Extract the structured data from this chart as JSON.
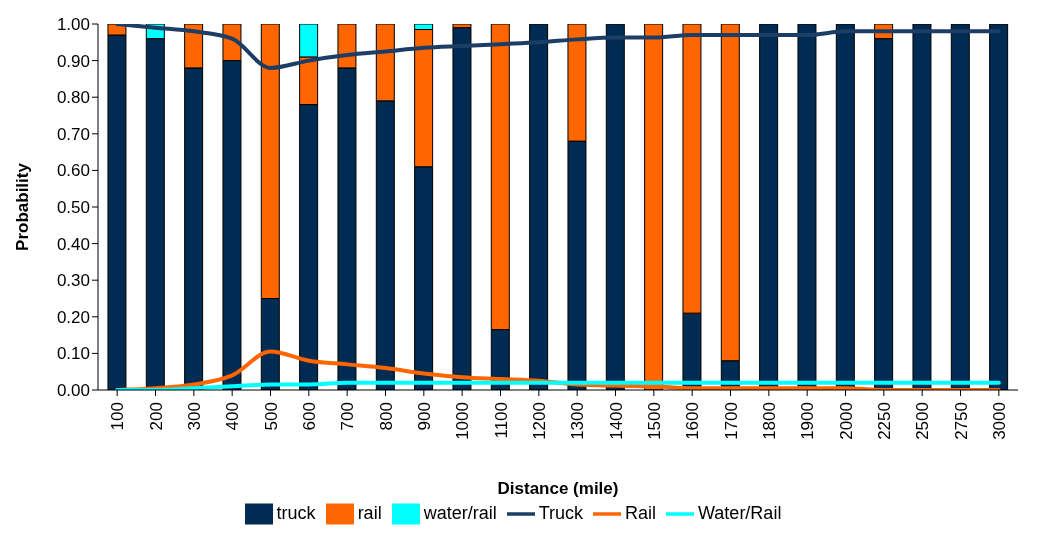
{
  "chart_data": {
    "type": "bar",
    "stacked": true,
    "xlabel": "Distance (mile)",
    "ylabel": "Probability",
    "categories": [
      "100",
      "200",
      "300",
      "400",
      "500",
      "600",
      "700",
      "800",
      "900",
      "1000",
      "1100",
      "1200",
      "1300",
      "1400",
      "1500",
      "1600",
      "1700",
      "1800",
      "1900",
      "2000",
      "2250",
      "2500",
      "2750",
      "3000"
    ],
    "series": [
      {
        "name": "truck",
        "color": "#002b52",
        "values": [
          0.97,
          0.96,
          0.88,
          0.9,
          0.25,
          0.78,
          0.88,
          0.79,
          0.61,
          0.99,
          0.165,
          1,
          0.68,
          1,
          0,
          0.21,
          0.08,
          1,
          1,
          1,
          0.96,
          1,
          1,
          1
        ]
      },
      {
        "name": "rail",
        "color": "#ff6600",
        "values": [
          0.03,
          0,
          0.12,
          0.1,
          0.75,
          0.13,
          0.12,
          0.21,
          0.375,
          0.01,
          0.835,
          0,
          0.32,
          0,
          1,
          0.79,
          0.92,
          0,
          0,
          0,
          0.04,
          0,
          0,
          0
        ]
      },
      {
        "name": "water/rail",
        "color": "#00ffff",
        "values": [
          0,
          0.04,
          0,
          0,
          0,
          0.09,
          0,
          0,
          0.015,
          0,
          0,
          0,
          0,
          0,
          0,
          0,
          0,
          0,
          0,
          0,
          0,
          0,
          0,
          0
        ]
      },
      {
        "name": "Truck",
        "type": "line",
        "color": "#1c3d66",
        "values": [
          1,
          0.99,
          0.98,
          0.96,
          0.88,
          0.9,
          0.915,
          0.925,
          0.935,
          0.94,
          0.945,
          0.95,
          0.958,
          0.963,
          0.963,
          0.97,
          0.97,
          0.97,
          0.97,
          0.98,
          0.98,
          0.98,
          0.98,
          0.98
        ]
      },
      {
        "name": "Rail",
        "type": "line",
        "color": "#ff6600",
        "values": [
          0,
          0.005,
          0.015,
          0.04,
          0.105,
          0.08,
          0.07,
          0.06,
          0.045,
          0.035,
          0.03,
          0.025,
          0.015,
          0.012,
          0.01,
          0.005,
          0.005,
          0.005,
          0.005,
          0.005,
          0,
          0,
          0,
          0
        ]
      },
      {
        "name": "Water/Rail",
        "type": "line",
        "color": "#00ffff",
        "values": [
          0,
          0,
          0.005,
          0.01,
          0.015,
          0.015,
          0.02,
          0.02,
          0.02,
          0.02,
          0.02,
          0.02,
          0.02,
          0.02,
          0.02,
          0.02,
          0.02,
          0.02,
          0.02,
          0.02,
          0.02,
          0.02,
          0.02,
          0.02
        ]
      }
    ],
    "ylim": [
      0,
      1
    ],
    "yticks": [
      {
        "value": 0,
        "label": "0.00"
      },
      {
        "value": 0.1,
        "label": "0.10"
      },
      {
        "value": 0.2,
        "label": "0.20"
      },
      {
        "value": 0.3,
        "label": "0.30"
      },
      {
        "value": 0.4,
        "label": "0.40"
      },
      {
        "value": 0.5,
        "label": "0.50"
      },
      {
        "value": 0.6,
        "label": "0.60"
      },
      {
        "value": 0.7,
        "label": "0.70"
      },
      {
        "value": 0.8,
        "label": "0.80"
      },
      {
        "value": 0.9,
        "label": "0.90"
      },
      {
        "value": 1,
        "label": "1.00"
      }
    ],
    "grid": false,
    "legend": "bottom",
    "marker": "none",
    "line_style": "solid"
  }
}
